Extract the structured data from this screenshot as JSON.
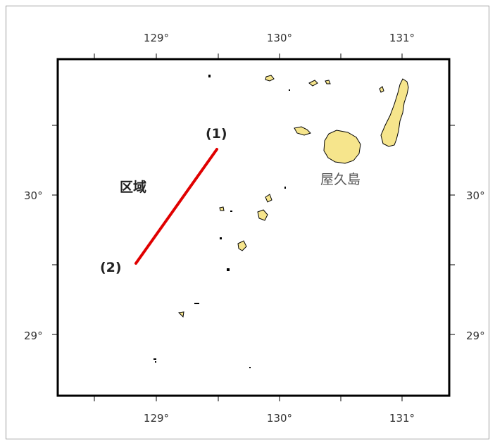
{
  "map": {
    "x_ticks": [
      "129°",
      "130°",
      "131°"
    ],
    "y_ticks": [
      "30°",
      "29°"
    ],
    "region_label": "区域",
    "point1_label": "(1)",
    "point2_label": "(2)",
    "island_label": "屋久島",
    "colors": {
      "land": "#f6e58c",
      "line": "#e00000",
      "frame": "#000000"
    }
  }
}
